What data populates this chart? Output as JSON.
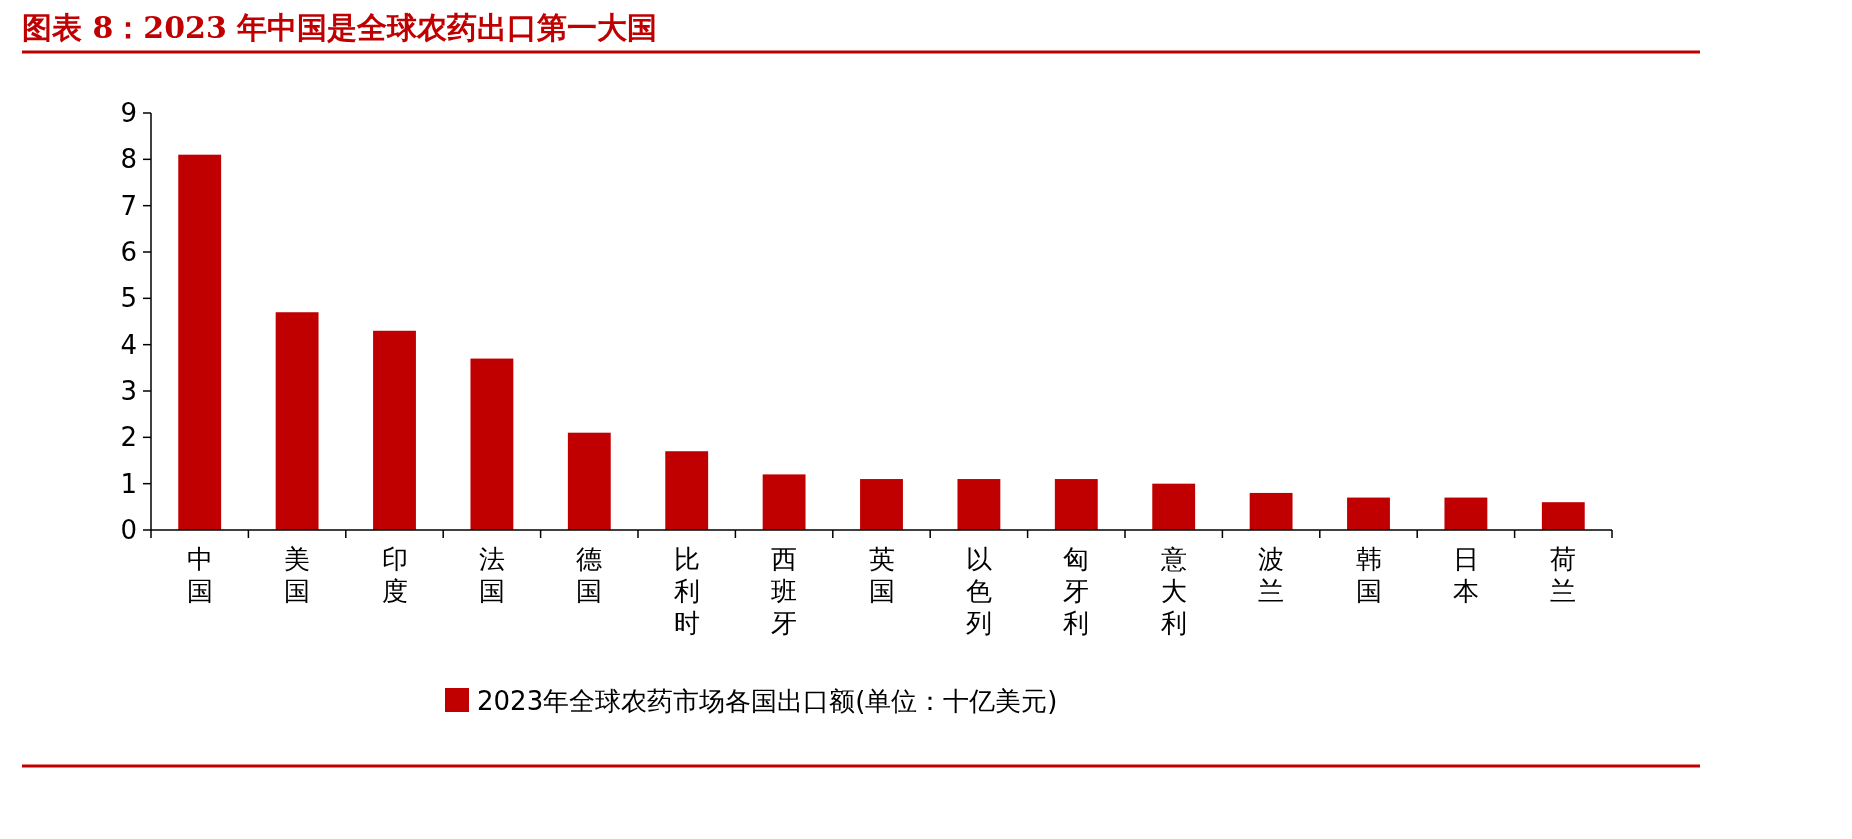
{
  "chart_data": {
    "type": "bar",
    "title": "图表 8：2023 年中国是全球农药出口第一大国",
    "categories": [
      "中国",
      "美国",
      "印度",
      "法国",
      "德国",
      "比利时",
      "西班牙",
      "英国",
      "以色列",
      "匈牙利",
      "意大利",
      "波兰",
      "韩国",
      "日本",
      "荷兰"
    ],
    "series": [
      {
        "name": "2023年全球农药市场各国出口额(单位：十亿美元)",
        "color": "#c00000",
        "values": [
          8.1,
          4.7,
          4.3,
          3.7,
          2.1,
          1.7,
          1.2,
          1.1,
          1.1,
          1.1,
          1.0,
          0.8,
          0.7,
          0.7,
          0.6
        ]
      }
    ],
    "ylim": [
      0,
      9
    ],
    "yticks": [
      0,
      1,
      2,
      3,
      4,
      5,
      6,
      7,
      8,
      9
    ],
    "legend": "bottom",
    "grid": false
  }
}
